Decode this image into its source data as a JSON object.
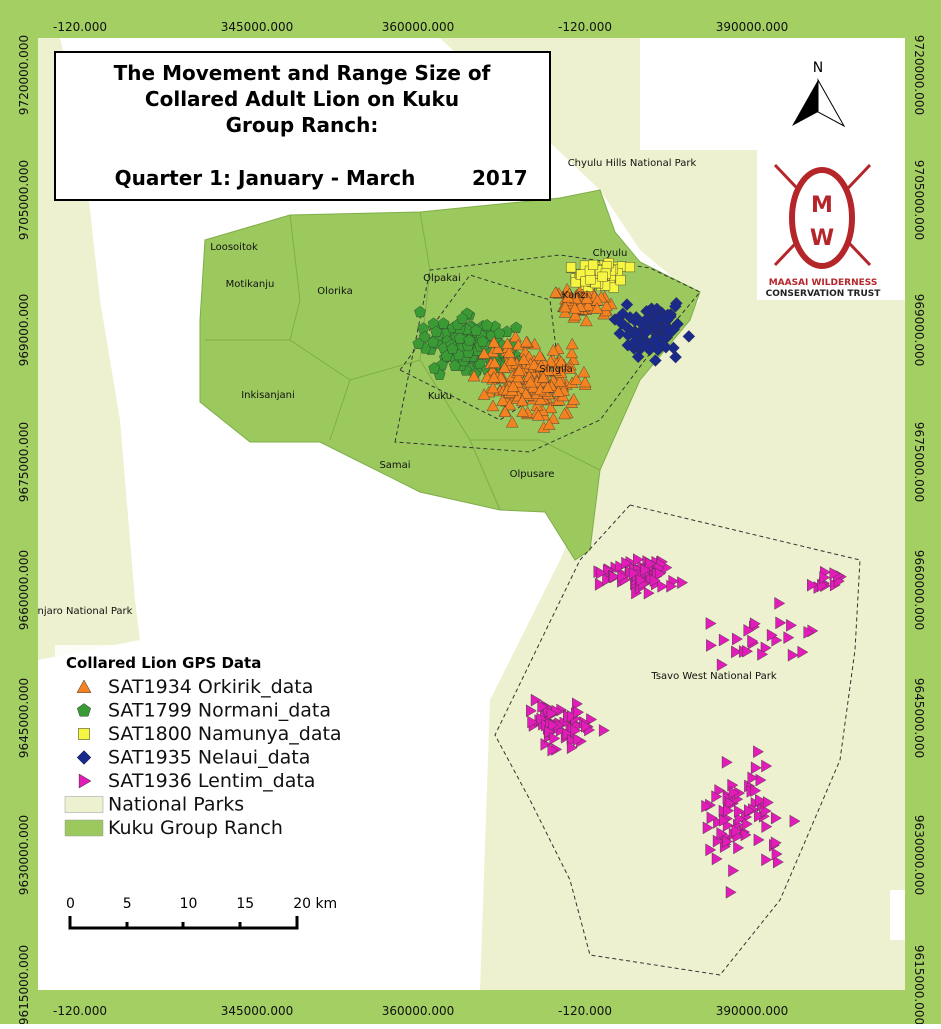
{
  "title": {
    "lines": [
      "The Movement and Range Size of",
      "Collared Adult Lion on Kuku",
      "Group Ranch:",
      "Quarter 1: January - March"
    ],
    "year": "2017"
  },
  "frame": {
    "top_labels": [
      "-120.000",
      "345000.000",
      "360000.000",
      "-120.000",
      "390000.000"
    ],
    "bottom_labels": [
      "-120.000",
      "345000.000",
      "360000.000",
      "-120.000",
      "390000.000"
    ],
    "left_labels": [
      "9720000.000",
      "9705000.000",
      "969000.000",
      "9675000.000",
      "9660000.000",
      "9645000.000",
      "9630000.000",
      "9615000.000"
    ],
    "right_labels": [
      "9720000.000",
      "9705000.000",
      "969000.000",
      "9675000.000",
      "9660000.000",
      "9645000.000",
      "9630000.000",
      "9615000.000"
    ]
  },
  "places": [
    "Loosoitok",
    "Motikanju",
    "Olorika",
    "Olpakai",
    "Chyulu",
    "Kanzi",
    "Singila",
    "Inkisanjani",
    "Kuku",
    "Samai",
    "Olpusare",
    "Chyulu Hills National Park",
    "Tsavo West National Park",
    "njaro National Park"
  ],
  "north": "N",
  "logo": {
    "lines": [
      "MAASAI WILDERNESS",
      "CONSERVATION TRUST"
    ]
  },
  "legend": {
    "title": "Collared Lion GPS Data",
    "items": [
      {
        "label": "SAT1934 Orkirik_data",
        "color": "#f58220"
      },
      {
        "label": "SAT1799 Normani_data",
        "color": "#3a9b35"
      },
      {
        "label": "SAT1800 Namunya_data",
        "color": "#f5f542"
      },
      {
        "label": "SAT1935 Nelaui_data",
        "color": "#1a2a8c"
      },
      {
        "label": "SAT1936 Lentim_data",
        "color": "#e21cb8"
      },
      {
        "label": "National Parks",
        "color": "#eef1cf"
      },
      {
        "label": "Kuku Group Ranch",
        "color": "#9cc95e"
      }
    ]
  },
  "scale_bar": {
    "labels": [
      "0",
      "5",
      "10",
      "15",
      "20 km"
    ]
  }
}
